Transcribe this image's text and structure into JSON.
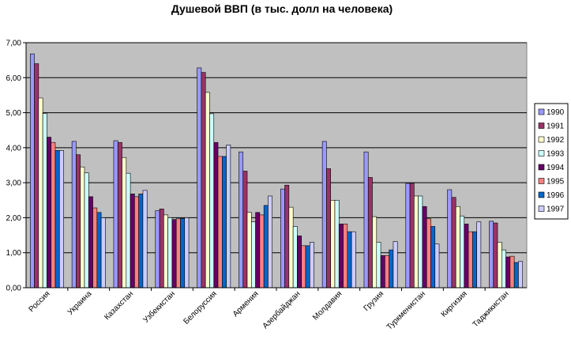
{
  "chart_data": {
    "type": "bar",
    "title": "Душевой ВВП (в тыс. долл на человека)",
    "xlabel": "",
    "ylabel": "",
    "ylim": [
      0,
      7
    ],
    "y_ticks": [
      "0,00",
      "1,00",
      "2,00",
      "3,00",
      "4,00",
      "5,00",
      "6,00",
      "7,00"
    ],
    "grid": true,
    "legend_position": "right",
    "plot_background": "#c0c0c0",
    "categories": [
      "Россия",
      "Украина",
      "Казахстан",
      "Узбекистан",
      "Белоруссия",
      "Армения",
      "Азербайджан",
      "Молдавия",
      "Грузия",
      "Туркменистан",
      "Киргизия",
      "Таджикистан"
    ],
    "series": [
      {
        "name": "1990",
        "color": "#9999ff",
        "values": [
          6.68,
          4.18,
          4.2,
          2.2,
          6.28,
          3.88,
          2.82,
          4.18,
          3.88,
          2.98,
          2.8,
          1.9
        ]
      },
      {
        "name": "1991",
        "color": "#993366",
        "values": [
          6.4,
          3.8,
          4.15,
          2.25,
          6.15,
          3.33,
          2.93,
          3.4,
          3.15,
          2.98,
          2.58,
          1.85
        ]
      },
      {
        "name": "1992",
        "color": "#ffffcc",
        "values": [
          5.42,
          3.45,
          3.72,
          2.08,
          5.58,
          2.15,
          2.3,
          2.5,
          2.03,
          2.62,
          2.32,
          1.3
        ]
      },
      {
        "name": "1993",
        "color": "#ccffff",
        "values": [
          4.98,
          3.28,
          3.27,
          2.0,
          4.97,
          1.88,
          1.75,
          2.5,
          1.3,
          2.62,
          2.05,
          1.08
        ]
      },
      {
        "name": "1994",
        "color": "#660066",
        "values": [
          4.3,
          2.6,
          2.68,
          1.95,
          4.15,
          2.15,
          1.48,
          1.82,
          0.92,
          2.32,
          1.82,
          0.88
        ]
      },
      {
        "name": "1995",
        "color": "#ff8080",
        "values": [
          4.15,
          2.28,
          2.6,
          1.97,
          3.75,
          2.08,
          1.2,
          1.82,
          0.92,
          1.97,
          1.6,
          0.9
        ]
      },
      {
        "name": "1996",
        "color": "#0066cc",
        "values": [
          3.92,
          2.15,
          2.68,
          1.98,
          3.75,
          2.35,
          1.2,
          1.6,
          1.08,
          1.75,
          1.6,
          0.72
        ]
      },
      {
        "name": "1997",
        "color": "#ccccff",
        "values": [
          3.92,
          2.0,
          2.78,
          2.0,
          4.08,
          2.62,
          1.3,
          1.6,
          1.32,
          1.25,
          1.88,
          0.75
        ]
      }
    ]
  }
}
